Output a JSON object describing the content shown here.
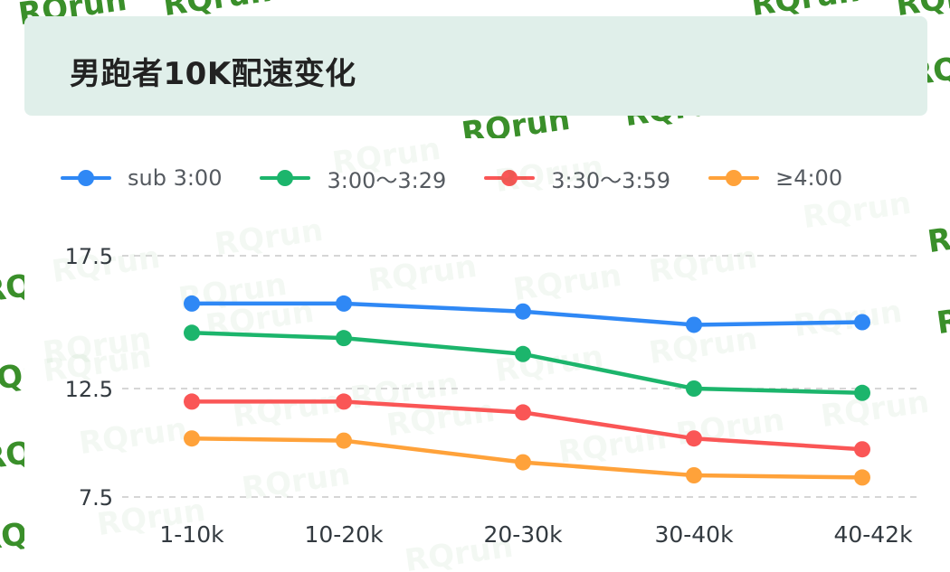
{
  "header": {
    "title": "男跑者10K配速变化"
  },
  "watermark": "RQrun",
  "chart_data": {
    "type": "line",
    "title": "男跑者10K配速变化",
    "xlabel": "",
    "ylabel": "",
    "categories": [
      "1-10k",
      "10-20k",
      "20-30k",
      "30-40k",
      "40-42k"
    ],
    "yticks": [
      17.5,
      12.5,
      7.5
    ],
    "grid": true,
    "legend_position": "top",
    "series": [
      {
        "name": "sub 3:00",
        "color": "#2f88f5",
        "values": [
          15.7,
          15.7,
          15.4,
          14.9,
          15.0
        ]
      },
      {
        "name": "3:00～3:29",
        "color": "#1cb56c",
        "values": [
          14.6,
          14.4,
          13.8,
          12.5,
          12.3
        ]
      },
      {
        "name": "3:30～3:59",
        "color": "#fa5656",
        "values": [
          11.9,
          11.9,
          11.4,
          10.2,
          9.7
        ]
      },
      {
        "name": "≥4:00",
        "color": "#ffa23a",
        "values": [
          10.2,
          10.1,
          9.1,
          8.5,
          8.4
        ]
      }
    ]
  }
}
